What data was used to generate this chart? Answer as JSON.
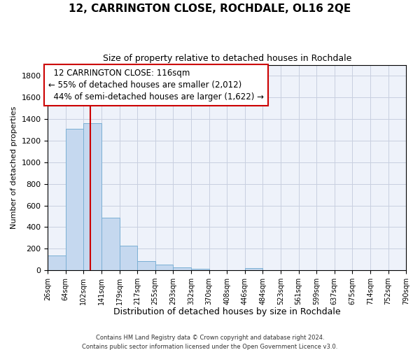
{
  "title": "12, CARRINGTON CLOSE, ROCHDALE, OL16 2QE",
  "subtitle": "Size of property relative to detached houses in Rochdale",
  "xlabel": "Distribution of detached houses by size in Rochdale",
  "ylabel": "Number of detached properties",
  "bar_color": "#c5d8ef",
  "bar_edge_color": "#7aafd4",
  "annotation_box_color": "#cc0000",
  "vline_color": "#cc0000",
  "grid_color": "#c8cfe0",
  "background_color": "#eef2fa",
  "footnote1": "Contains HM Land Registry data © Crown copyright and database right 2024.",
  "footnote2": "Contains public sector information licensed under the Open Government Licence v3.0.",
  "bins": [
    26,
    64,
    102,
    141,
    179,
    217,
    255,
    293,
    332,
    370,
    408,
    446,
    484,
    523,
    561,
    599,
    637,
    675,
    714,
    752,
    790
  ],
  "values": [
    140,
    1310,
    1365,
    490,
    230,
    85,
    50,
    27,
    15,
    0,
    0,
    20,
    0,
    0,
    0,
    0,
    0,
    0,
    0,
    0
  ],
  "property_size": 116,
  "property_label": "12 CARRINGTON CLOSE: 116sqm",
  "pct_smaller": 55,
  "n_smaller": 2012,
  "pct_larger_semi": 44,
  "n_larger_semi": 1622,
  "ylim_max": 1900,
  "yticks": [
    0,
    200,
    400,
    600,
    800,
    1000,
    1200,
    1400,
    1600,
    1800
  ],
  "annotation_fontsize": 8.5,
  "title_fontsize": 11,
  "subtitle_fontsize": 9,
  "ylabel_fontsize": 8,
  "xlabel_fontsize": 9,
  "tick_fontsize": 7,
  "footnote_fontsize": 6
}
